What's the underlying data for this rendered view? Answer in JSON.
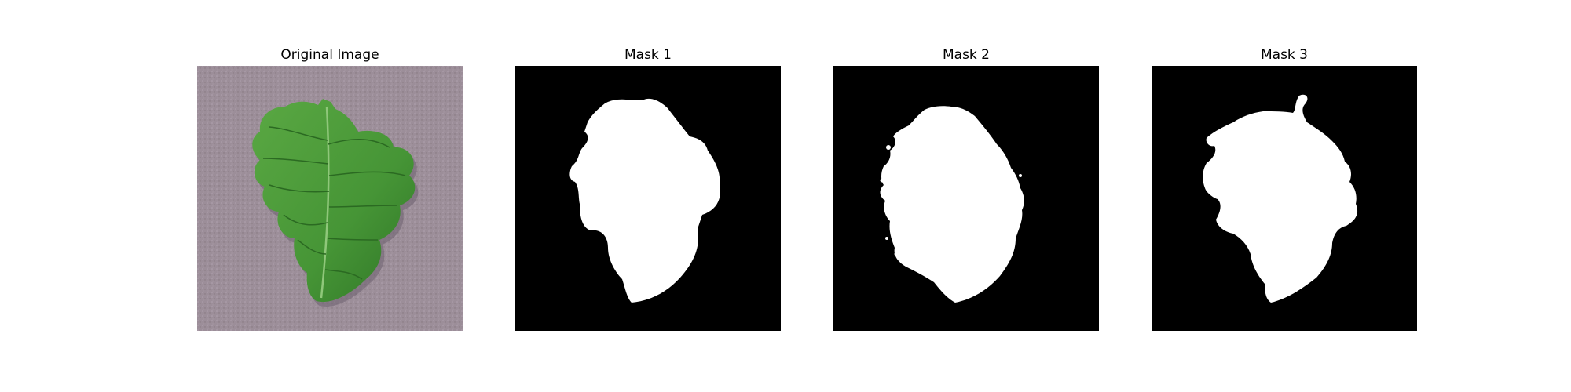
{
  "panels": [
    {
      "title": "Original Image"
    },
    {
      "title": "Mask 1"
    },
    {
      "title": "Mask 2"
    },
    {
      "title": "Mask 3"
    }
  ],
  "colors": {
    "background_surface": "#9e8f9b",
    "leaf_green": "#4f9a3a",
    "leaf_dark": "#2c6b22",
    "mask_background": "#000000",
    "mask_foreground": "#ffffff"
  }
}
